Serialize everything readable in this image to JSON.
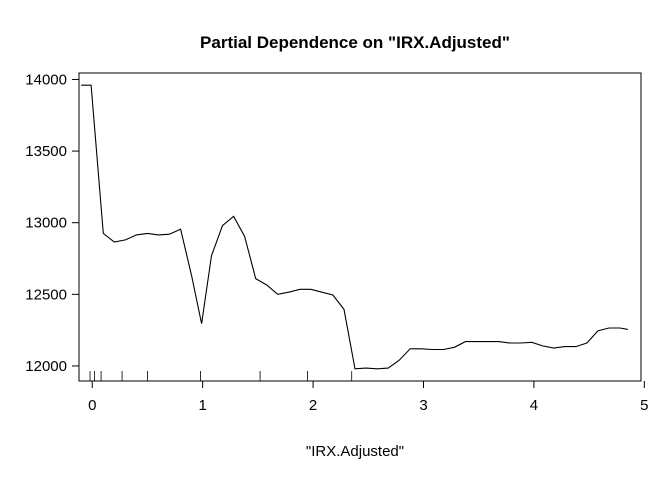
{
  "chart_data": {
    "type": "line",
    "title": "Partial Dependence on \"IRX.Adjusted\"",
    "xlabel": "\"IRX.Adjusted\"",
    "ylabel": "",
    "xlim": [
      -0.12,
      4.97
    ],
    "ylim": [
      11895,
      14045
    ],
    "xticks": [
      0,
      1,
      2,
      3,
      4,
      5
    ],
    "yticks": [
      12000,
      12500,
      13000,
      13500,
      14000
    ],
    "grid": false,
    "series": [
      {
        "x": [
          -0.1,
          -0.01,
          0.1,
          0.2,
          0.3,
          0.4,
          0.5,
          0.6,
          0.7,
          0.8,
          0.9,
          0.99,
          1.08,
          1.18,
          1.28,
          1.38,
          1.48,
          1.58,
          1.68,
          1.78,
          1.88,
          1.98,
          2.08,
          2.18,
          2.28,
          2.38,
          2.48,
          2.58,
          2.68,
          2.78,
          2.88,
          2.98,
          3.08,
          3.18,
          3.28,
          3.38,
          3.48,
          3.58,
          3.68,
          3.78,
          3.88,
          3.98,
          4.08,
          4.18,
          4.28,
          4.38,
          4.48,
          4.58,
          4.68,
          4.78,
          4.85
        ],
        "y": [
          13960,
          13960,
          12925,
          12865,
          12880,
          12915,
          12925,
          12915,
          12920,
          12955,
          12630,
          12295,
          12770,
          12980,
          13045,
          12905,
          12610,
          12565,
          12500,
          12515,
          12535,
          12535,
          12515,
          12495,
          12395,
          11980,
          11985,
          11980,
          11985,
          12040,
          12120,
          12120,
          12115,
          12115,
          12130,
          12170,
          12170,
          12170,
          12170,
          12160,
          12160,
          12165,
          12140,
          12125,
          12135,
          12135,
          12160,
          12245,
          12265,
          12265,
          12255
        ]
      }
    ],
    "rug": [
      -0.02,
      0.02,
      0.08,
      0.27,
      0.5,
      0.98,
      1.52,
      1.95,
      2.35
    ]
  }
}
